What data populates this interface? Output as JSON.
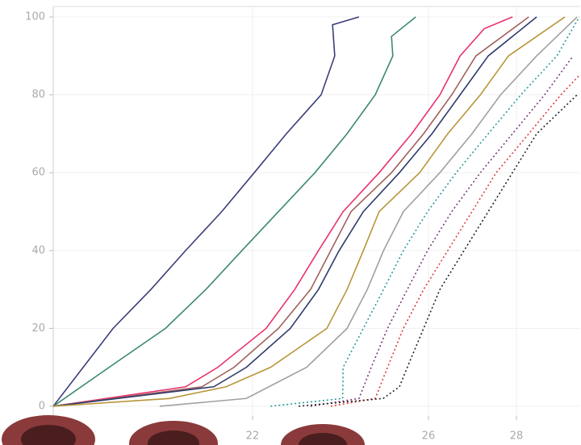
{
  "chart_data": {
    "type": "line",
    "xlim": [
      17.47,
      29.45
    ],
    "ylim": [
      -2.5,
      102.7
    ],
    "xticks": [
      22,
      26,
      28
    ],
    "yticks": [
      0,
      20,
      40,
      60,
      80,
      100
    ],
    "grid": true,
    "series": [
      {
        "color": "#3b3d7a",
        "style": "solid",
        "x": [
          17.47,
          18.15,
          18.83,
          19.69,
          20.48,
          21.3,
          22.04,
          22.77,
          23.56,
          23.87,
          23.82,
          24.42
        ],
        "values": [
          0,
          10,
          20,
          30,
          40,
          50,
          60,
          70,
          80,
          90,
          98,
          100
        ]
      },
      {
        "color": "#3d8a6a",
        "style": "solid",
        "x": [
          17.47,
          18.74,
          20.02,
          20.94,
          21.76,
          22.59,
          23.42,
          24.15,
          24.79,
          25.19,
          25.16,
          25.71
        ],
        "values": [
          0,
          10,
          20,
          30,
          40,
          50,
          60,
          70,
          80,
          90,
          95,
          100
        ]
      },
      {
        "color": "#e8336b",
        "style": "solid",
        "x": [
          17.47,
          20.48,
          21.21,
          22.31,
          22.96,
          23.5,
          24.06,
          24.88,
          25.62,
          26.26,
          26.72,
          27.27,
          27.91
        ],
        "values": [
          0,
          5,
          10,
          20,
          30,
          40,
          50,
          60,
          70,
          80,
          90,
          97,
          100
        ]
      },
      {
        "color": "#a0605a",
        "style": "solid",
        "x": [
          17.47,
          20.85,
          21.58,
          22.59,
          23.32,
          23.78,
          24.24,
          25.16,
          25.89,
          26.53,
          27.08,
          28.28
        ],
        "values": [
          0,
          5,
          10,
          20,
          30,
          40,
          50,
          60,
          70,
          80,
          90,
          100
        ]
      },
      {
        "color": "#2e3a6e",
        "style": "solid",
        "x": [
          17.47,
          21.12,
          21.86,
          22.86,
          23.5,
          23.97,
          24.52,
          25.34,
          26.08,
          26.72,
          27.36,
          28.46
        ],
        "values": [
          0,
          5,
          10,
          20,
          30,
          40,
          50,
          60,
          70,
          80,
          90,
          100
        ]
      },
      {
        "color": "#b8963a",
        "style": "solid",
        "x": [
          17.47,
          20.11,
          21.4,
          22.41,
          23.69,
          24.15,
          24.52,
          24.88,
          25.8,
          26.44,
          27.18,
          27.82,
          29.1
        ],
        "values": [
          0,
          2,
          5,
          10,
          20,
          30,
          40,
          50,
          60,
          70,
          80,
          90,
          100
        ]
      },
      {
        "color": "#a0a0a0",
        "style": "solid",
        "x": [
          19.89,
          21.86,
          23.23,
          24.15,
          24.61,
          24.98,
          25.43,
          26.26,
          26.99,
          27.64,
          28.46,
          29.38
        ],
        "values": [
          0,
          2,
          10,
          20,
          30,
          40,
          50,
          60,
          70,
          80,
          90,
          100
        ]
      },
      {
        "color": "#2a9a9a",
        "style": "dotted",
        "x": [
          22.41,
          24.05,
          24.06,
          24.52,
          24.98,
          25.43,
          25.98,
          26.63,
          27.36,
          28.1,
          28.92,
          29.43
        ],
        "values": [
          0,
          2,
          10,
          20,
          30,
          40,
          50,
          60,
          70,
          80,
          90,
          100
        ]
      },
      {
        "color": "#7a3a7a",
        "style": "dotted",
        "x": [
          23.32,
          24.42,
          24.7,
          25.07,
          25.52,
          25.98,
          26.53,
          27.18,
          27.91,
          28.64,
          29.29
        ],
        "values": [
          0,
          2,
          10,
          20,
          30,
          40,
          50,
          60,
          70,
          80,
          90
        ]
      },
      {
        "color": "#e03a3a",
        "style": "dotted",
        "x": [
          23.78,
          24.79,
          25.07,
          25.43,
          25.89,
          26.44,
          26.99,
          27.54,
          28.28,
          29.01,
          29.43
        ],
        "values": [
          0,
          2,
          10,
          20,
          30,
          40,
          50,
          60,
          70,
          80,
          85
        ]
      },
      {
        "color": "#222222",
        "style": "dotted",
        "x": [
          23.05,
          24.97,
          25.34,
          25.52,
          25.89,
          26.26,
          26.81,
          27.36,
          27.91,
          28.46,
          29.38
        ],
        "values": [
          0,
          2,
          5,
          10,
          20,
          30,
          40,
          50,
          60,
          70,
          80
        ]
      }
    ]
  }
}
